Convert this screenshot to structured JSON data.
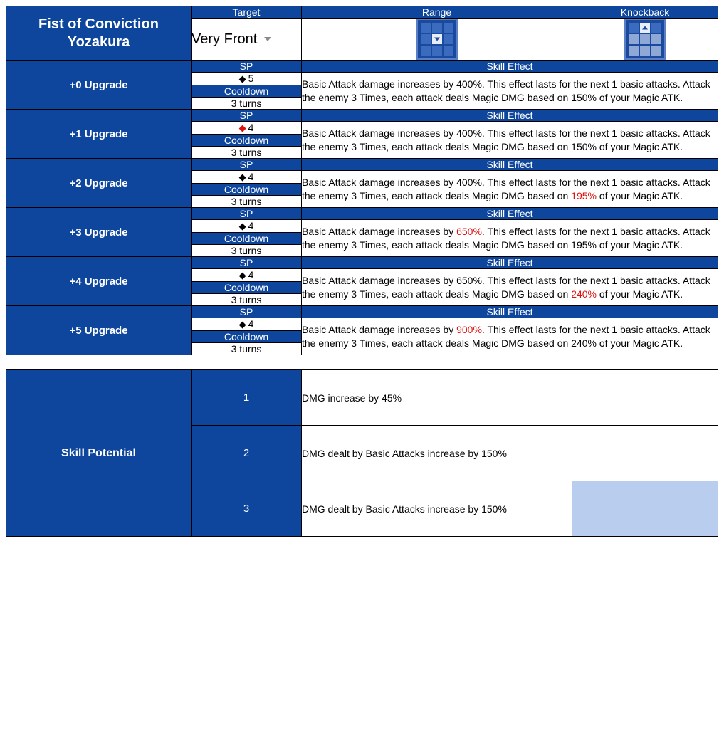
{
  "colors": {
    "dark_blue": "#0d469c",
    "white": "#ffffff",
    "black": "#000000",
    "highlight_red": "#e01010",
    "grid_frame": "#1a4a9e",
    "grid_border": "#5a7fc4",
    "grid_cell": "#3a6bbf",
    "grid_active": "#e8eef9",
    "grid_shade": "#8fa8d6",
    "potential_shade": "#b9cdee"
  },
  "skill": {
    "title_line1": "Fist of Conviction",
    "title_line2": "Yozakura",
    "headers": {
      "target": "Target",
      "range": "Range",
      "knockback": "Knockback"
    },
    "target_value": "Very Front",
    "range_grid": {
      "active_cell": 4,
      "arrow": "down"
    },
    "knockback_grid": {
      "active_cell": 1,
      "arrow": "up",
      "shaded_cells": [
        3,
        4,
        5,
        6,
        7,
        8
      ]
    },
    "stat_labels": {
      "sp": "SP",
      "cooldown": "Cooldown",
      "skill_effect": "Skill Effect"
    }
  },
  "upgrades": [
    {
      "label": "+0 Upgrade",
      "sp": "5",
      "sp_red": false,
      "cooldown": "3 turns",
      "effect_parts": [
        {
          "t": "Basic Attack damage increases by 400%. This effect lasts for the next 1 basic attacks. Attack the enemy 3 Times, each attack deals Magic DMG based on 150% of your Magic ATK.",
          "red": false
        }
      ]
    },
    {
      "label": "+1 Upgrade",
      "sp": "4",
      "sp_red": true,
      "cooldown": "3 turns",
      "effect_parts": [
        {
          "t": "Basic Attack damage increases by 400%. This effect lasts for the next 1 basic attacks. Attack the enemy 3 Times, each attack deals Magic DMG based on 150% of your Magic ATK.",
          "red": false
        }
      ]
    },
    {
      "label": "+2 Upgrade",
      "sp": "4",
      "sp_red": false,
      "cooldown": "3 turns",
      "effect_parts": [
        {
          "t": "Basic Attack damage increases by 400%. This effect lasts for the next 1 basic attacks. Attack the enemy 3 Times, each attack deals Magic DMG based on ",
          "red": false
        },
        {
          "t": "195%",
          "red": true
        },
        {
          "t": " of your Magic ATK.",
          "red": false
        }
      ]
    },
    {
      "label": "+3 Upgrade",
      "sp": "4",
      "sp_red": false,
      "cooldown": "3 turns",
      "effect_parts": [
        {
          "t": "Basic Attack damage increases by ",
          "red": false
        },
        {
          "t": "650%",
          "red": true
        },
        {
          "t": ". This effect lasts for the next 1 basic attacks. Attack the enemy 3 Times, each attack deals Magic DMG based on 195% of your Magic ATK.",
          "red": false
        }
      ]
    },
    {
      "label": "+4 Upgrade",
      "sp": "4",
      "sp_red": false,
      "cooldown": "3 turns",
      "effect_parts": [
        {
          "t": "Basic Attack damage increases by 650%. This effect lasts for the next 1 basic attacks. Attack the enemy 3 Times, each attack deals Magic DMG based on ",
          "red": false
        },
        {
          "t": "240%",
          "red": true
        },
        {
          "t": " of your Magic ATK.",
          "red": false
        }
      ]
    },
    {
      "label": "+5 Upgrade",
      "sp": "4",
      "sp_red": false,
      "cooldown": "3 turns",
      "effect_parts": [
        {
          "t": "Basic Attack damage increases by ",
          "red": false
        },
        {
          "t": "900%",
          "red": true
        },
        {
          "t": ". This effect lasts for the next 1 basic attacks. Attack the enemy 3 Times, each attack deals Magic DMG based on 240% of your Magic ATK.",
          "red": false
        }
      ]
    }
  ],
  "potential": {
    "label": "Skill Potential",
    "rows": [
      {
        "num": "1",
        "desc": "DMG increase by 45%",
        "shaded": false
      },
      {
        "num": "2",
        "desc": "DMG dealt by Basic Attacks increase by 150%",
        "shaded": false
      },
      {
        "num": "3",
        "desc": "DMG dealt by Basic Attacks increase by 150%",
        "shaded": true
      }
    ]
  }
}
